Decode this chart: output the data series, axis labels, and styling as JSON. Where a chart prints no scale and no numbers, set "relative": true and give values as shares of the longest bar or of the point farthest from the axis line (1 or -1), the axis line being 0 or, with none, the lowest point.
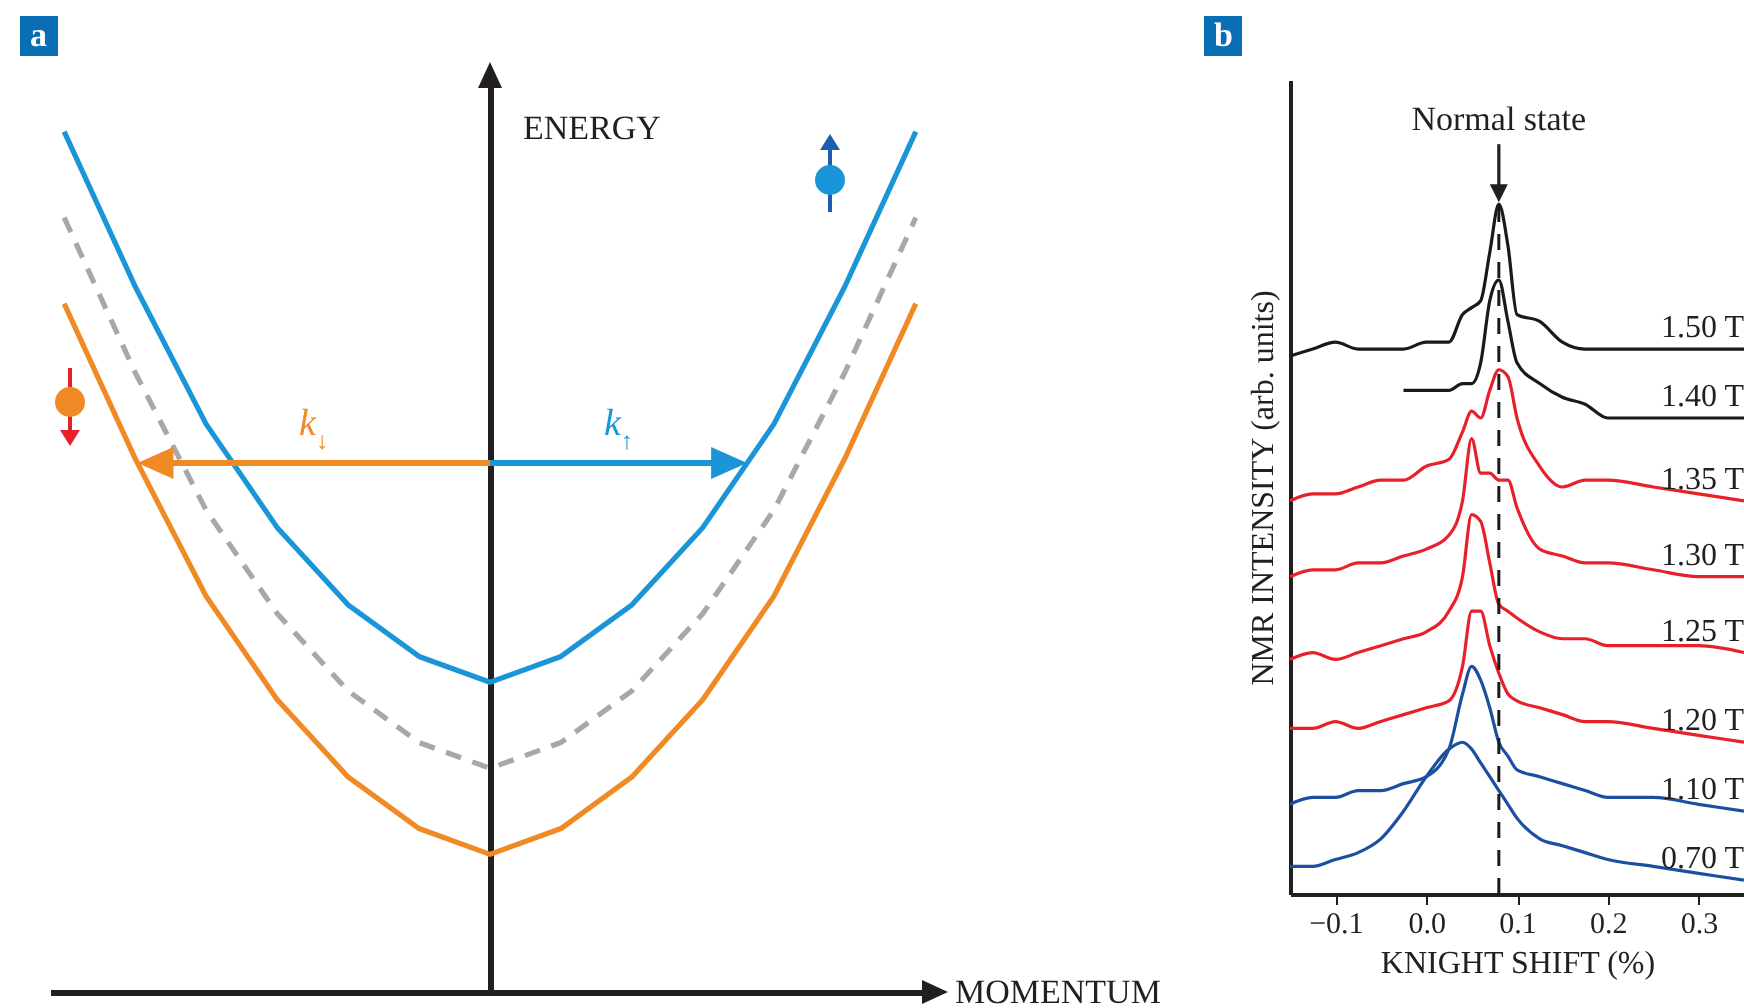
{
  "chart_data": [
    {
      "type": "line",
      "title": "a",
      "xlabel": "MOMENTUM",
      "ylabel": "ENERGY",
      "relative": true,
      "categories": [
        null,
        null,
        null,
        null,
        null,
        null,
        null,
        null,
        null,
        null,
        null,
        null,
        null
      ],
      "series": [
        {
          "color": "#1a96d8",
          "values": [
            1.0,
            0.82,
            0.66,
            0.54,
            0.45,
            0.39,
            0.36,
            0.39,
            0.45,
            0.54,
            0.66,
            0.82,
            1.0
          ]
        },
        {
          "color": "#a6a8ab",
          "line_style": "dashed",
          "values": [
            0.9,
            0.72,
            0.56,
            0.44,
            0.35,
            0.29,
            0.26,
            0.29,
            0.35,
            0.44,
            0.56,
            0.72,
            0.9
          ]
        },
        {
          "color": "#f08a24",
          "values": [
            0.8,
            0.62,
            0.46,
            0.34,
            0.25,
            0.19,
            0.16,
            0.19,
            0.25,
            0.34,
            0.46,
            0.62,
            0.8
          ]
        }
      ],
      "annotations": [
        "k$_{↓}$",
        "k$_{↑}$"
      ]
    },
    {
      "type": "line",
      "title": "b",
      "xlabel": "KNIGHT SHIFT (%)",
      "ylabel": "NMR INTENSITY (arb. units)",
      "relative": true,
      "x": [
        -0.15,
        -0.125,
        -0.1,
        -0.075,
        -0.05,
        -0.025,
        0,
        0.025,
        0.04,
        0.05,
        0.06,
        0.07,
        0.08,
        0.09,
        0.1,
        0.125,
        0.15,
        0.175,
        0.2,
        0.25,
        0.3,
        0.35
      ],
      "xlim": [
        -0.15,
        0.35
      ],
      "xticks": [
        {
          "value": -0.1,
          "label": "−0.1"
        },
        {
          "value": 0,
          "label": "0.0"
        },
        0.1,
        0.2,
        0.3
      ],
      "series": [
        {
          "name": "1.50 T",
          "color": "#1a1a1a",
          "values": [
            0.78,
            0.79,
            0.8,
            0.79,
            0.79,
            0.79,
            0.8,
            0.8,
            0.84,
            0.85,
            0.86,
            0.93,
            1.0,
            0.94,
            0.84,
            0.83,
            0.8,
            0.79,
            0.79,
            0.79,
            0.79,
            0.79
          ]
        },
        {
          "name": "1.40 T",
          "color": "#1a1a1a",
          "values": [
            null,
            null,
            null,
            null,
            null,
            0.73,
            0.73,
            0.73,
            0.74,
            0.74,
            0.77,
            0.86,
            0.89,
            0.83,
            0.77,
            0.74,
            0.72,
            0.71,
            0.69,
            0.69,
            0.69,
            0.69
          ]
        },
        {
          "name": "1.35 T",
          "color": "#e8202a",
          "values": [
            0.57,
            0.58,
            0.58,
            0.59,
            0.6,
            0.6,
            0.62,
            0.63,
            0.67,
            0.7,
            0.69,
            0.73,
            0.76,
            0.75,
            0.69,
            0.62,
            0.59,
            0.6,
            0.6,
            0.59,
            0.58,
            0.57
          ]
        },
        {
          "name": "1.30 T",
          "color": "#e8202a",
          "values": [
            0.46,
            0.47,
            0.47,
            0.48,
            0.48,
            0.49,
            0.5,
            0.52,
            0.57,
            0.66,
            0.61,
            0.61,
            0.6,
            0.6,
            0.56,
            0.5,
            0.49,
            0.48,
            0.48,
            0.47,
            0.46,
            0.46
          ]
        },
        {
          "name": "1.25 T",
          "color": "#e8202a",
          "values": [
            0.34,
            0.35,
            0.34,
            0.35,
            0.36,
            0.37,
            0.38,
            0.41,
            0.46,
            0.55,
            0.54,
            0.48,
            0.42,
            0.41,
            0.4,
            0.38,
            0.37,
            0.37,
            0.36,
            0.36,
            0.36,
            0.35
          ]
        },
        {
          "name": "1.20 T",
          "color": "#e8202a",
          "values": [
            0.24,
            0.24,
            0.25,
            0.24,
            0.25,
            0.26,
            0.27,
            0.28,
            0.33,
            0.41,
            0.41,
            0.36,
            0.32,
            0.29,
            0.28,
            0.27,
            0.26,
            0.25,
            0.25,
            0.24,
            0.23,
            0.22
          ]
        },
        {
          "name": "1.10 T",
          "color": "#1c4fa0",
          "values": [
            0.13,
            0.14,
            0.14,
            0.15,
            0.15,
            0.16,
            0.17,
            0.21,
            0.29,
            0.33,
            0.31,
            0.27,
            0.22,
            0.2,
            0.18,
            0.17,
            0.16,
            0.15,
            0.14,
            0.14,
            0.13,
            0.12
          ]
        },
        {
          "name": "0.70 T",
          "color": "#1c4fa0",
          "values": [
            0.04,
            0.04,
            0.05,
            0.06,
            0.08,
            0.12,
            0.17,
            0.21,
            0.22,
            0.21,
            0.19,
            0.17,
            0.15,
            0.13,
            0.11,
            0.08,
            0.07,
            0.06,
            0.05,
            0.04,
            0.03,
            0.02
          ]
        }
      ],
      "ref_lines": [
        {
          "axis": "x",
          "value": 0.08,
          "color": "#1a1a1a",
          "line_style": "dashed"
        }
      ],
      "annotations": [
        {
          "text": "Normal state",
          "x": 0.08,
          "y": 1.0
        }
      ]
    }
  ]
}
